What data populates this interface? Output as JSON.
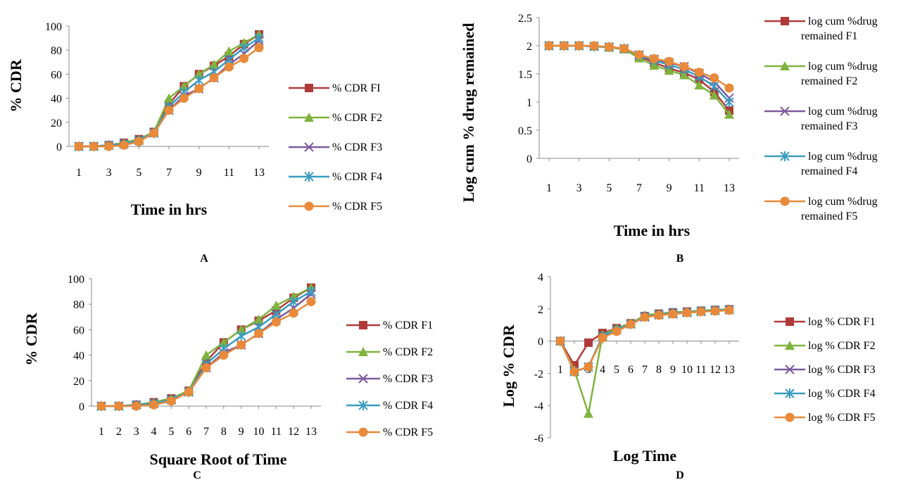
{
  "series_colors": [
    "#B03A3A",
    "#7FB33E",
    "#7B5A9E",
    "#3A9CC0",
    "#E88A3A"
  ],
  "marker_shapes": [
    "square",
    "triangle",
    "x",
    "star",
    "circle"
  ],
  "chart_data": [
    {
      "panel_label": "A",
      "type": "line",
      "ylabel": "% CDR",
      "xlabel": "Time in hrs",
      "ylim": [
        0,
        100
      ],
      "yticks": [
        "0",
        "20",
        "40",
        "60",
        "80",
        "100"
      ],
      "xticks": [
        "1",
        "3",
        "5",
        "7",
        "9",
        "11",
        "13"
      ],
      "x": [
        1,
        2,
        3,
        4,
        5,
        6,
        7,
        8,
        9,
        10,
        11,
        12,
        13
      ],
      "grid": false,
      "legend_position": "right",
      "series": [
        {
          "name": "% CDR FI",
          "values": [
            0,
            0,
            1,
            3,
            6,
            12,
            35,
            50,
            60,
            67,
            75,
            85,
            93
          ]
        },
        {
          "name": "% CDR F2",
          "values": [
            0,
            0,
            1,
            3,
            6,
            12,
            40,
            50,
            60,
            68,
            79,
            86,
            93
          ]
        },
        {
          "name": "% CDR F3",
          "values": [
            0,
            0,
            1,
            2,
            5,
            11,
            30,
            42,
            48,
            57,
            68,
            77,
            88
          ]
        },
        {
          "name": "% CDR F4",
          "values": [
            0,
            0,
            1,
            2,
            5,
            11,
            33,
            45,
            55,
            62,
            72,
            82,
            90
          ]
        },
        {
          "name": "% CDR F5",
          "values": [
            0,
            0,
            0,
            1,
            4,
            11,
            30,
            40,
            48,
            57,
            66,
            73,
            82
          ]
        }
      ]
    },
    {
      "panel_label": "B",
      "type": "line",
      "ylabel": "Log cum % drug remained",
      "xlabel": "Time in hrs",
      "ylim": [
        0,
        2.5
      ],
      "yticks": [
        "0",
        "0.5",
        "1",
        "1.5",
        "2",
        "2.5"
      ],
      "xticks": [
        "1",
        "3",
        "5",
        "7",
        "9",
        "11",
        "13"
      ],
      "x": [
        1,
        2,
        3,
        4,
        5,
        6,
        7,
        8,
        9,
        10,
        11,
        12,
        13
      ],
      "grid": false,
      "legend_position": "right",
      "series": [
        {
          "name": "log cum %drug remained F1",
          "values": [
            2,
            2,
            2,
            1.99,
            1.97,
            1.94,
            1.81,
            1.7,
            1.6,
            1.52,
            1.4,
            1.18,
            0.85
          ]
        },
        {
          "name": "log cum %drug remained F2",
          "values": [
            2,
            2,
            2,
            1.99,
            1.97,
            1.94,
            1.78,
            1.65,
            1.56,
            1.48,
            1.3,
            1.12,
            0.78
          ]
        },
        {
          "name": "log cum %drug remained F3",
          "values": [
            2,
            2,
            2,
            1.99,
            1.98,
            1.95,
            1.84,
            1.76,
            1.7,
            1.63,
            1.51,
            1.36,
            1.07
          ]
        },
        {
          "name": "log cum %drug remained F4",
          "values": [
            2,
            2,
            2,
            1.99,
            1.98,
            1.95,
            1.83,
            1.74,
            1.66,
            1.58,
            1.45,
            1.28,
            1.0
          ]
        },
        {
          "name": "log cum %drug remained F5",
          "values": [
            2,
            2,
            2,
            2.0,
            1.98,
            1.95,
            1.84,
            1.77,
            1.72,
            1.63,
            1.53,
            1.43,
            1.25
          ]
        }
      ]
    },
    {
      "panel_label": "C",
      "type": "line",
      "ylabel": "% CDR",
      "xlabel": "Square Root of Time",
      "ylim": [
        0,
        100
      ],
      "yticks": [
        "0",
        "20",
        "40",
        "60",
        "80",
        "100"
      ],
      "xticks": [
        "1",
        "2",
        "3",
        "4",
        "5",
        "6",
        "7",
        "8",
        "9",
        "10",
        "11",
        "12",
        "13"
      ],
      "x": [
        1,
        2,
        3,
        4,
        5,
        6,
        7,
        8,
        9,
        10,
        11,
        12,
        13
      ],
      "grid": false,
      "legend_position": "right",
      "series": [
        {
          "name": "% CDR F1",
          "values": [
            0,
            0,
            1,
            3,
            6,
            12,
            35,
            50,
            60,
            67,
            75,
            85,
            93
          ]
        },
        {
          "name": "% CDR F2",
          "values": [
            0,
            0,
            1,
            3,
            6,
            12,
            40,
            50,
            60,
            68,
            79,
            86,
            93
          ]
        },
        {
          "name": "% CDR F3",
          "values": [
            0,
            0,
            1,
            2,
            5,
            11,
            30,
            42,
            48,
            57,
            68,
            77,
            88
          ]
        },
        {
          "name": "% CDR F4",
          "values": [
            0,
            0,
            1,
            2,
            5,
            11,
            33,
            45,
            55,
            62,
            72,
            82,
            90
          ]
        },
        {
          "name": "% CDR F5",
          "values": [
            0,
            0,
            0,
            1,
            4,
            11,
            30,
            40,
            48,
            57,
            66,
            73,
            82
          ]
        }
      ]
    },
    {
      "panel_label": "D",
      "type": "line",
      "ylabel": "Log % CDR",
      "xlabel": "Log Time",
      "ylim": [
        -6,
        4
      ],
      "yticks": [
        "-6",
        "-4",
        "-2",
        "0",
        "2",
        "4"
      ],
      "xticks": [
        "1",
        "2",
        "3",
        "4",
        "5",
        "6",
        "7",
        "8",
        "9",
        "10",
        "11",
        "12",
        "13"
      ],
      "xtick_labels_joined": "10111213",
      "x": [
        1,
        2,
        3,
        4,
        5,
        6,
        7,
        8,
        9,
        10,
        11,
        12,
        13
      ],
      "grid": false,
      "legend_position": "right",
      "series": [
        {
          "name": "log % CDR F1",
          "values": [
            0,
            -1.5,
            -0.1,
            0.5,
            0.8,
            1.1,
            1.55,
            1.7,
            1.78,
            1.83,
            1.88,
            1.93,
            1.97
          ]
        },
        {
          "name": "log % CDR F2",
          "values": [
            0,
            -1.8,
            -4.5,
            0.4,
            0.8,
            1.1,
            1.6,
            1.7,
            1.78,
            1.83,
            1.9,
            1.93,
            1.97
          ]
        },
        {
          "name": "log % CDR F3",
          "values": [
            0,
            -1.9,
            -1.6,
            0.3,
            0.7,
            1.05,
            1.48,
            1.62,
            1.68,
            1.76,
            1.83,
            1.89,
            1.94
          ]
        },
        {
          "name": "log % CDR F4",
          "values": [
            0,
            -1.9,
            -1.6,
            0.3,
            0.7,
            1.05,
            1.52,
            1.65,
            1.74,
            1.79,
            1.86,
            1.91,
            1.95
          ]
        },
        {
          "name": "log % CDR F5",
          "values": [
            0,
            -1.9,
            -1.6,
            0.2,
            0.6,
            1.04,
            1.48,
            1.6,
            1.68,
            1.76,
            1.82,
            1.86,
            1.91
          ]
        }
      ]
    }
  ]
}
